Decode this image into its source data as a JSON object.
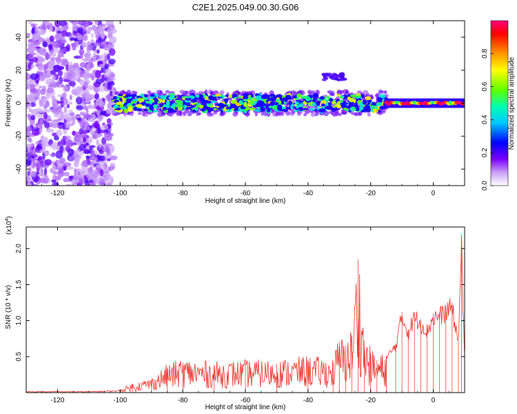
{
  "title": "C2E1.2025.049.00.30.G06",
  "colors": {
    "spectrum_mid": "#6a00e8",
    "spectrum_light": "#c9a8f0",
    "snr_line": "#e8261e",
    "axis": "#000000"
  },
  "chart_data": [
    {
      "type": "heatmap",
      "xlabel": "Height of straight line (km)",
      "ylabel": "Frequency (Hz)",
      "xlim": [
        -130,
        10
      ],
      "ylim": [
        -50,
        50
      ],
      "x_ticks": [
        -120,
        -100,
        -80,
        -60,
        -40,
        -20,
        0
      ],
      "y_ticks": [
        -40,
        -20,
        0,
        20,
        40
      ],
      "colorbar": {
        "label": "Normalized spectral amplitude",
        "range": [
          0,
          1
        ],
        "ticks": [
          "0.0",
          "0.2",
          "0.4",
          "0.6",
          "0.8"
        ]
      },
      "features": [
        {
          "x_range": [
            -130,
            -102
          ],
          "y_range": [
            -50,
            50
          ],
          "intensity": 0.08,
          "note_visible": false
        },
        {
          "x_range": [
            -102,
            -15
          ],
          "y_center": 0,
          "y_halfwidth": 5,
          "intensity": 0.4
        },
        {
          "x_range": [
            -15,
            10
          ],
          "y_center": 0,
          "y_halfwidth": 2,
          "intensity": 1.0
        },
        {
          "x_range": [
            -35,
            -28
          ],
          "y_center": 16,
          "y_halfwidth": 2,
          "intensity": 0.2
        }
      ]
    },
    {
      "type": "line",
      "xlabel": "Height of straight line (km)",
      "ylabel": "SNR (10 * v/v)",
      "exponent_label": "(x10",
      "exponent_power": "4",
      "exponent_close": ")",
      "xlim": [
        -130,
        10
      ],
      "ylim": [
        0,
        2.3
      ],
      "x_ticks": [
        -120,
        -100,
        -80,
        -60,
        -40,
        -20,
        0
      ],
      "y_ticks": [
        0.5,
        1.0,
        1.5,
        2.0
      ],
      "y_tick_labels": [
        "0.5",
        "1.0",
        "1.5",
        "2.0"
      ],
      "series": [
        {
          "x": [
            -130,
            -110,
            -100,
            -96,
            -90,
            -85,
            -80,
            -70,
            -60,
            -50,
            -40,
            -32,
            -30,
            -28,
            -26,
            -24,
            -22,
            -20,
            -18,
            -15,
            -12,
            -10,
            -8,
            -6,
            -4,
            -2,
            0,
            2,
            4,
            6,
            8,
            9,
            10
          ],
          "y": [
            0.02,
            0.02,
            0.04,
            0.12,
            0.18,
            0.35,
            0.42,
            0.38,
            0.4,
            0.4,
            0.45,
            0.42,
            0.7,
            0.65,
            0.8,
            1.85,
            0.72,
            0.55,
            0.45,
            0.5,
            0.68,
            1.12,
            0.88,
            1.1,
            1.02,
            0.9,
            1.1,
            1.12,
            1.18,
            1.25,
            0.72,
            2.2,
            0.4
          ]
        }
      ]
    }
  ]
}
